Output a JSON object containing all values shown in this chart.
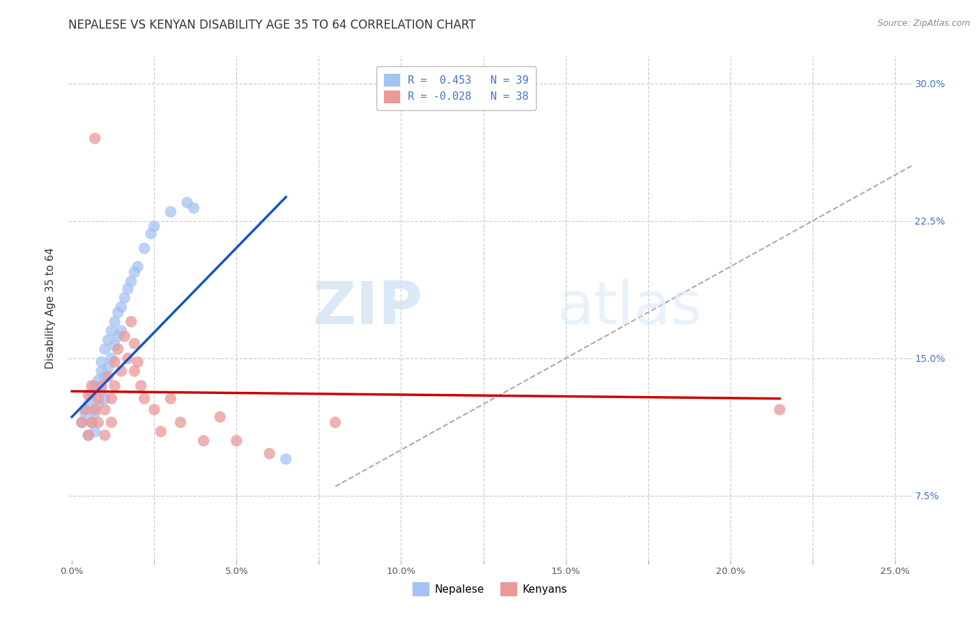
{
  "title": "NEPALESE VS KENYAN DISABILITY AGE 35 TO 64 CORRELATION CHART",
  "source": "Source: ZipAtlas.com",
  "ylabel": "Disability Age 35 to 64",
  "xlim": [
    -0.001,
    0.255
  ],
  "ylim": [
    0.04,
    0.315
  ],
  "xticks": [
    0.0,
    0.025,
    0.05,
    0.075,
    0.1,
    0.125,
    0.15,
    0.175,
    0.2,
    0.225,
    0.25
  ],
  "xticklabels": [
    "0.0%",
    "",
    "5.0%",
    "",
    "10.0%",
    "",
    "15.0%",
    "",
    "20.0%",
    "",
    "25.0%"
  ],
  "yticks": [
    0.075,
    0.15,
    0.225,
    0.3
  ],
  "yticklabels": [
    "7.5%",
    "15.0%",
    "22.5%",
    "30.0%"
  ],
  "blue_color": "#a4c2f4",
  "pink_color": "#ea9999",
  "blue_line_color": "#1155cc",
  "pink_line_color": "#cc0000",
  "legend_blue_r": "R =  0.453",
  "legend_blue_n": "N = 39",
  "legend_pink_r": "R = -0.028",
  "legend_pink_n": "N = 38",
  "legend_label_blue": "Nepalese",
  "legend_label_pink": "Kenyans",
  "nepalese_x": [
    0.003,
    0.004,
    0.005,
    0.005,
    0.006,
    0.006,
    0.007,
    0.007,
    0.007,
    0.008,
    0.008,
    0.009,
    0.009,
    0.009,
    0.01,
    0.01,
    0.01,
    0.011,
    0.011,
    0.012,
    0.012,
    0.013,
    0.013,
    0.014,
    0.014,
    0.015,
    0.015,
    0.016,
    0.017,
    0.018,
    0.019,
    0.02,
    0.022,
    0.024,
    0.025,
    0.03,
    0.035,
    0.037,
    0.065
  ],
  "nepalese_y": [
    0.115,
    0.12,
    0.125,
    0.108,
    0.13,
    0.115,
    0.135,
    0.12,
    0.11,
    0.138,
    0.125,
    0.143,
    0.132,
    0.148,
    0.155,
    0.14,
    0.128,
    0.16,
    0.145,
    0.165,
    0.15,
    0.17,
    0.157,
    0.175,
    0.162,
    0.178,
    0.165,
    0.183,
    0.188,
    0.192,
    0.197,
    0.2,
    0.21,
    0.218,
    0.222,
    0.23,
    0.235,
    0.232,
    0.095
  ],
  "kenyan_x": [
    0.003,
    0.004,
    0.005,
    0.005,
    0.006,
    0.006,
    0.007,
    0.007,
    0.008,
    0.008,
    0.009,
    0.01,
    0.01,
    0.011,
    0.012,
    0.012,
    0.013,
    0.013,
    0.014,
    0.015,
    0.016,
    0.017,
    0.018,
    0.019,
    0.019,
    0.02,
    0.021,
    0.022,
    0.025,
    0.027,
    0.03,
    0.033,
    0.04,
    0.045,
    0.05,
    0.06,
    0.08,
    0.215
  ],
  "kenyan_y": [
    0.115,
    0.122,
    0.108,
    0.13,
    0.115,
    0.135,
    0.122,
    0.27,
    0.128,
    0.115,
    0.135,
    0.122,
    0.108,
    0.14,
    0.128,
    0.115,
    0.148,
    0.135,
    0.155,
    0.143,
    0.162,
    0.15,
    0.17,
    0.158,
    0.143,
    0.148,
    0.135,
    0.128,
    0.122,
    0.11,
    0.128,
    0.115,
    0.105,
    0.118,
    0.105,
    0.098,
    0.115,
    0.122
  ],
  "diagonal_line_x": [
    0.08,
    0.255
  ],
  "diagonal_line_y": [
    0.08,
    0.255
  ],
  "blue_trend_x": [
    0.0,
    0.065
  ],
  "blue_trend_y_start": 0.118,
  "blue_trend_y_end": 0.238,
  "pink_trend_x": [
    0.0,
    0.215
  ],
  "pink_trend_y_start": 0.132,
  "pink_trend_y_end": 0.128
}
